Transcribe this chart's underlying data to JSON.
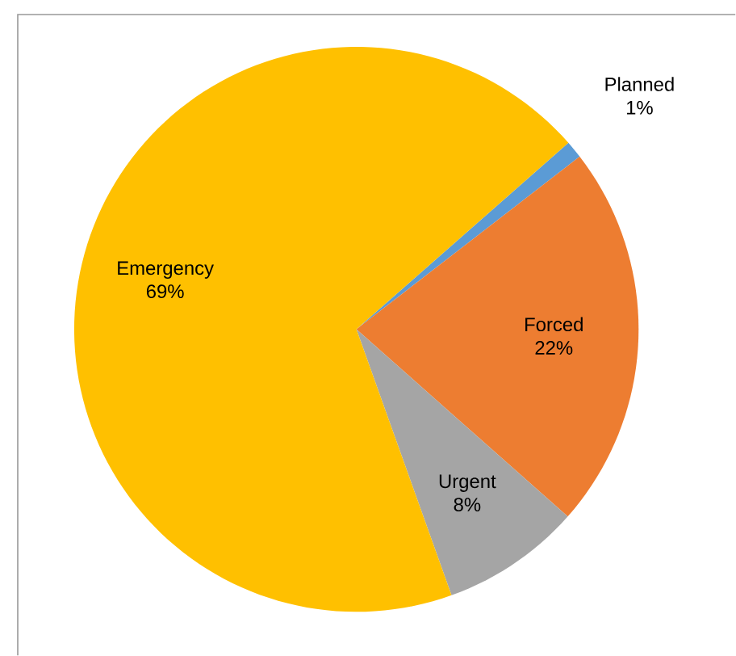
{
  "chart_data": {
    "type": "pie",
    "categories": [
      "Planned",
      "Forced",
      "Urgent",
      "Emergency"
    ],
    "values": [
      1,
      22,
      8,
      69
    ],
    "colors": [
      "#5b9bd5",
      "#ed7d31",
      "#a5a5a5",
      "#ffc000"
    ],
    "value_labels": [
      "1%",
      "22%",
      "8%",
      "69%"
    ]
  }
}
